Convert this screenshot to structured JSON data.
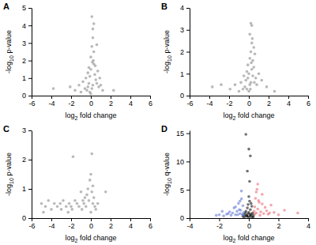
{
  "chart_data": [
    {
      "type": "scatter",
      "title": "A",
      "x_label": "log2 fold change",
      "y_label": "-log10 p-value",
      "xlim": [
        -6,
        6
      ],
      "xticks": [
        -6,
        -4,
        -2,
        0,
        2,
        4,
        6
      ],
      "ylim": [
        0,
        5
      ],
      "yticks": [
        0,
        1,
        2,
        3,
        4,
        5
      ],
      "series": [
        {
          "color": "#7f7f7f",
          "marker": "circle",
          "x": [
            -3.8,
            -2.1,
            -1.6,
            -1.2,
            -1.0,
            -0.8,
            -0.6,
            -0.5,
            -0.4,
            -0.3,
            -0.3,
            -0.2,
            -0.2,
            -0.1,
            -0.1,
            0.0,
            0.0,
            0.1,
            0.1,
            0.2,
            0.2,
            0.3,
            0.3,
            0.4,
            0.5,
            0.6,
            0.7,
            0.8,
            1.0,
            1.2,
            0.0,
            0.1,
            0.2,
            0.3,
            0.15,
            0.25,
            0.45,
            0.6,
            0.9,
            2.3
          ],
          "values": [
            0.4,
            0.5,
            0.3,
            0.6,
            0.2,
            0.8,
            0.4,
            1.0,
            0.3,
            1.3,
            0.5,
            0.7,
            1.6,
            0.2,
            1.1,
            0.1,
            2.2,
            0.4,
            2.8,
            0.6,
            3.3,
            1.8,
            2.5,
            1.2,
            0.9,
            0.7,
            1.4,
            0.5,
            0.6,
            0.3,
            1.5,
            4.5,
            3.8,
            4.1,
            1.9,
            2.0,
            1.7,
            2.9,
            1.0,
            0.3
          ]
        }
      ]
    },
    {
      "type": "scatter",
      "title": "B",
      "x_label": "log2 fold change",
      "y_label": "-log10 p-value",
      "xlim": [
        -6,
        6
      ],
      "xticks": [
        -6,
        -4,
        -2,
        0,
        2,
        4,
        6
      ],
      "ylim": [
        0,
        4
      ],
      "yticks": [
        0,
        1,
        2,
        3,
        4
      ],
      "series": [
        {
          "color": "#7f7f7f",
          "marker": "circle",
          "x": [
            -3.7,
            -1.9,
            -1.4,
            -1.0,
            -0.8,
            -0.6,
            -0.5,
            -0.4,
            -0.3,
            -0.2,
            -0.2,
            -0.1,
            -0.1,
            0.0,
            0.0,
            0.1,
            0.1,
            0.2,
            0.2,
            0.3,
            0.3,
            0.4,
            0.4,
            0.5,
            0.6,
            0.7,
            0.8,
            1.0,
            1.3,
            1.8,
            0.1,
            0.2,
            0.3,
            0.35,
            0.5,
            0.15,
            0.25,
            0.55,
            2.6,
            -2.8
          ],
          "values": [
            0.4,
            0.3,
            0.5,
            0.2,
            0.6,
            0.3,
            0.9,
            0.4,
            0.7,
            1.1,
            0.3,
            0.8,
            1.4,
            0.2,
            1.0,
            0.5,
            1.7,
            0.6,
            2.0,
            1.2,
            2.4,
            0.9,
            1.6,
            1.3,
            1.9,
            0.8,
            0.5,
            1.0,
            0.7,
            0.4,
            2.8,
            3.3,
            3.2,
            2.6,
            2.2,
            0.3,
            1.5,
            0.6,
            0.2,
            0.5
          ]
        }
      ]
    },
    {
      "type": "scatter",
      "title": "C",
      "x_label": "log2 fold change",
      "y_label": "-log10 p-value",
      "xlim": [
        -6,
        6
      ],
      "xticks": [
        -6,
        -4,
        -2,
        0,
        2,
        4,
        6
      ],
      "ylim": [
        0,
        3
      ],
      "yticks": [
        0,
        1,
        2,
        3
      ],
      "series": [
        {
          "color": "#7f7f7f",
          "marker": "circle",
          "x": [
            -5.0,
            -4.6,
            -4.3,
            -4.0,
            -3.7,
            -3.4,
            -3.1,
            -2.8,
            -2.5,
            -2.2,
            -2.0,
            -1.8,
            -1.6,
            -1.4,
            -1.2,
            -1.0,
            -0.9,
            -0.8,
            -0.7,
            -0.6,
            -0.5,
            -0.4,
            -0.3,
            -0.2,
            -0.1,
            0.0,
            0.0,
            0.1,
            0.1,
            0.2,
            0.2,
            0.3,
            0.4,
            0.5,
            0.7,
            1.5,
            -2.3,
            -1.9,
            -4.8,
            -3.0
          ],
          "values": [
            0.5,
            0.4,
            0.6,
            0.3,
            0.5,
            0.4,
            0.5,
            0.6,
            0.4,
            0.5,
            0.4,
            2.1,
            0.6,
            0.5,
            0.4,
            0.9,
            0.3,
            0.6,
            0.5,
            0.7,
            0.4,
            0.8,
            1.0,
            0.6,
            1.3,
            0.2,
            1.5,
            0.9,
            2.2,
            0.5,
            1.1,
            0.7,
            0.4,
            0.3,
            0.5,
            0.9,
            0.2,
            0.3,
            0.2,
            0.3
          ]
        }
      ]
    },
    {
      "type": "scatter",
      "title": "D",
      "x_label": "log2 fold change",
      "y_label": "-log10 q-value",
      "xlim": [
        -4,
        4
      ],
      "xticks": [
        -4,
        -2,
        0,
        2,
        4
      ],
      "ylim": [
        0,
        15.5
      ],
      "yticks": [
        0,
        5,
        10,
        15
      ],
      "series": [
        {
          "color": "#000000",
          "marker": "circle",
          "x": [
            -0.4,
            -0.3,
            -0.25,
            -0.2,
            -0.15,
            -0.1,
            -0.1,
            -0.05,
            0.0,
            0.0,
            0.05,
            0.1,
            0.1,
            0.15,
            0.2,
            0.25,
            0.3,
            -0.2,
            0.0,
            0.1,
            -0.1,
            0.05,
            0.2,
            -0.3,
            0.3,
            -0.05,
            0.15,
            0.0,
            -0.15,
            0.1
          ],
          "values": [
            0.3,
            0.6,
            0.9,
            1.2,
            0.5,
            1.8,
            0.3,
            2.4,
            0.2,
            1.0,
            3.0,
            0.4,
            1.5,
            0.7,
            2.1,
            0.9,
            0.5,
            14.8,
            12.2,
            11.0,
            8.3,
            6.5,
            0.2,
            0.2,
            0.2,
            0.8,
            2.6,
            3.8,
            0.4,
            0.6
          ]
        },
        {
          "color": "#e8606a",
          "marker": "circle",
          "x": [
            0.35,
            0.4,
            0.45,
            0.5,
            0.55,
            0.6,
            0.7,
            0.8,
            0.9,
            1.0,
            1.1,
            1.2,
            1.3,
            1.5,
            1.7,
            2.0,
            0.5,
            0.65,
            0.75,
            0.4,
            0.9,
            1.4,
            0.6,
            2.4,
            3.3
          ],
          "values": [
            1.2,
            2.0,
            3.5,
            0.9,
            5.1,
            1.6,
            2.8,
            1.1,
            4.2,
            0.8,
            1.9,
            1.3,
            0.7,
            2.3,
            1.0,
            0.6,
            4.6,
            3.1,
            0.5,
            0.7,
            2.5,
            0.9,
            6.0,
            1.4,
            0.9
          ]
        },
        {
          "color": "#5a6fd0",
          "marker": "circle",
          "x": [
            -0.35,
            -0.4,
            -0.45,
            -0.5,
            -0.55,
            -0.6,
            -0.7,
            -0.8,
            -0.9,
            -1.0,
            -1.1,
            -1.2,
            -1.3,
            -1.5,
            -1.7,
            -2.0,
            -0.5,
            -0.65,
            -0.75,
            -0.4,
            -0.9,
            -1.4,
            -0.6,
            -2.2,
            -1.8
          ],
          "values": [
            1.0,
            2.2,
            0.7,
            3.4,
            1.4,
            0.8,
            2.6,
            1.2,
            0.6,
            1.8,
            0.9,
            0.5,
            1.1,
            0.7,
            0.4,
            0.6,
            4.8,
            1.5,
            0.6,
            0.5,
            2.0,
            0.8,
            3.0,
            0.5,
            1.2
          ]
        }
      ]
    }
  ]
}
